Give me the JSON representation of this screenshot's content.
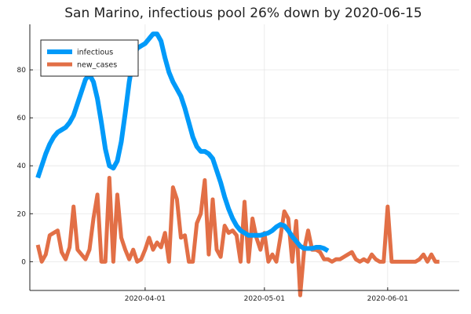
{
  "chart_data": {
    "type": "line",
    "title": "San Marino, infectious pool 26% down by 2020-06-15",
    "xlabel": "",
    "ylabel": "",
    "x_start": "2020-03-05",
    "x_range": [
      "2020-03-03",
      "2020-06-19"
    ],
    "ylim": [
      -12,
      99
    ],
    "x_ticks": [
      {
        "date": "2020-04-01",
        "label": "2020-04-01"
      },
      {
        "date": "2020-05-01",
        "label": "2020-05-01"
      },
      {
        "date": "2020-06-01",
        "label": "2020-06-01"
      }
    ],
    "y_ticks": [
      {
        "value": 0,
        "label": "0"
      },
      {
        "value": 20,
        "label": "20"
      },
      {
        "value": 40,
        "label": "40"
      },
      {
        "value": 60,
        "label": "60"
      },
      {
        "value": 80,
        "label": "80"
      }
    ],
    "grid": true,
    "legend_position": "top-left",
    "series": [
      {
        "name": "infectious",
        "color": "#009AF9",
        "values": [
          35,
          40,
          45,
          49,
          52,
          54,
          55,
          56,
          58,
          61,
          66,
          71,
          76,
          78,
          75,
          68,
          58,
          47,
          40,
          39,
          42,
          50,
          62,
          75,
          85,
          89,
          90,
          91,
          93,
          95,
          95,
          92,
          85,
          79,
          75,
          72,
          69,
          64,
          58,
          52,
          48,
          46,
          46,
          45,
          43,
          38,
          33,
          27,
          22,
          18,
          15,
          13,
          12,
          11,
          11,
          11,
          11,
          11.5,
          12,
          13,
          14.5,
          15.5,
          15,
          13,
          10.5,
          8.5,
          6.5,
          5.5,
          5.5,
          5.5,
          6,
          6,
          5.5,
          4.5
        ]
      },
      {
        "name": "new_cases",
        "color": "#E26F46",
        "values": [
          7,
          0,
          3,
          11,
          12,
          13,
          4,
          1,
          6,
          23,
          5,
          3,
          1,
          5,
          18,
          28,
          0,
          0,
          35,
          0,
          28,
          10,
          5,
          1,
          5,
          0,
          1,
          5,
          10,
          5,
          8,
          6,
          12,
          0,
          31,
          26,
          10,
          11,
          0,
          0,
          16,
          20,
          34,
          3,
          26,
          5,
          2,
          15,
          12,
          13,
          11,
          0,
          25,
          0,
          18,
          10,
          5,
          12,
          0,
          3,
          0,
          10,
          21,
          18,
          0,
          17,
          -14,
          5,
          13,
          5,
          5,
          4,
          1,
          1,
          0,
          1,
          1,
          2,
          3,
          4,
          1,
          0,
          1,
          0,
          3,
          1,
          0,
          0,
          23,
          0,
          0,
          0,
          0,
          0,
          0,
          0,
          1,
          3,
          0,
          3,
          0,
          0
        ]
      }
    ]
  }
}
